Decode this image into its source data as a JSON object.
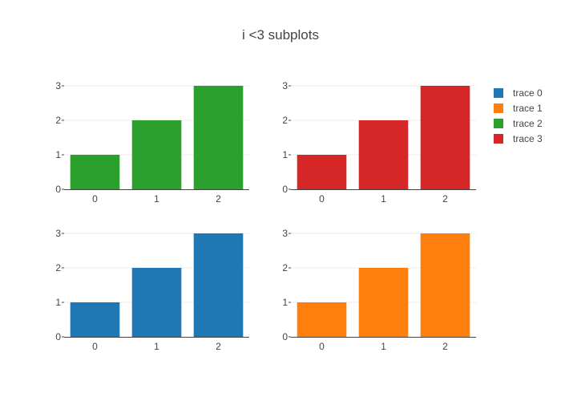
{
  "title": "i <3 subplots",
  "legend": [
    {
      "name": "trace 0",
      "color": "#1f77b4"
    },
    {
      "name": "trace 1",
      "color": "#ff7f0e"
    },
    {
      "name": "trace 2",
      "color": "#2ca02c"
    },
    {
      "name": "trace 3",
      "color": "#d62728"
    }
  ],
  "chart_data": [
    {
      "type": "bar",
      "position": "top-left",
      "series": [
        {
          "name": "trace 2",
          "color": "#2ca02c",
          "values": [
            1,
            2,
            3
          ]
        }
      ],
      "categories": [
        "0",
        "1",
        "2"
      ],
      "ylim": [
        0,
        3
      ],
      "yticks": [
        "0",
        "1",
        "2",
        "3"
      ],
      "grid": true
    },
    {
      "type": "bar",
      "position": "top-right",
      "series": [
        {
          "name": "trace 3",
          "color": "#d62728",
          "values": [
            1,
            2,
            3
          ]
        }
      ],
      "categories": [
        "0",
        "1",
        "2"
      ],
      "ylim": [
        0,
        3
      ],
      "yticks": [
        "0",
        "1",
        "2",
        "3"
      ],
      "grid": true
    },
    {
      "type": "bar",
      "position": "bottom-left",
      "series": [
        {
          "name": "trace 0",
          "color": "#1f77b4",
          "values": [
            1,
            2,
            3
          ]
        }
      ],
      "categories": [
        "0",
        "1",
        "2"
      ],
      "ylim": [
        0,
        3
      ],
      "yticks": [
        "0",
        "1",
        "2",
        "3"
      ],
      "grid": true
    },
    {
      "type": "bar",
      "position": "bottom-right",
      "series": [
        {
          "name": "trace 1",
          "color": "#ff7f0e",
          "values": [
            1,
            2,
            3
          ]
        }
      ],
      "categories": [
        "0",
        "1",
        "2"
      ],
      "ylim": [
        0,
        3
      ],
      "yticks": [
        "0",
        "1",
        "2",
        "3"
      ],
      "grid": true
    }
  ]
}
